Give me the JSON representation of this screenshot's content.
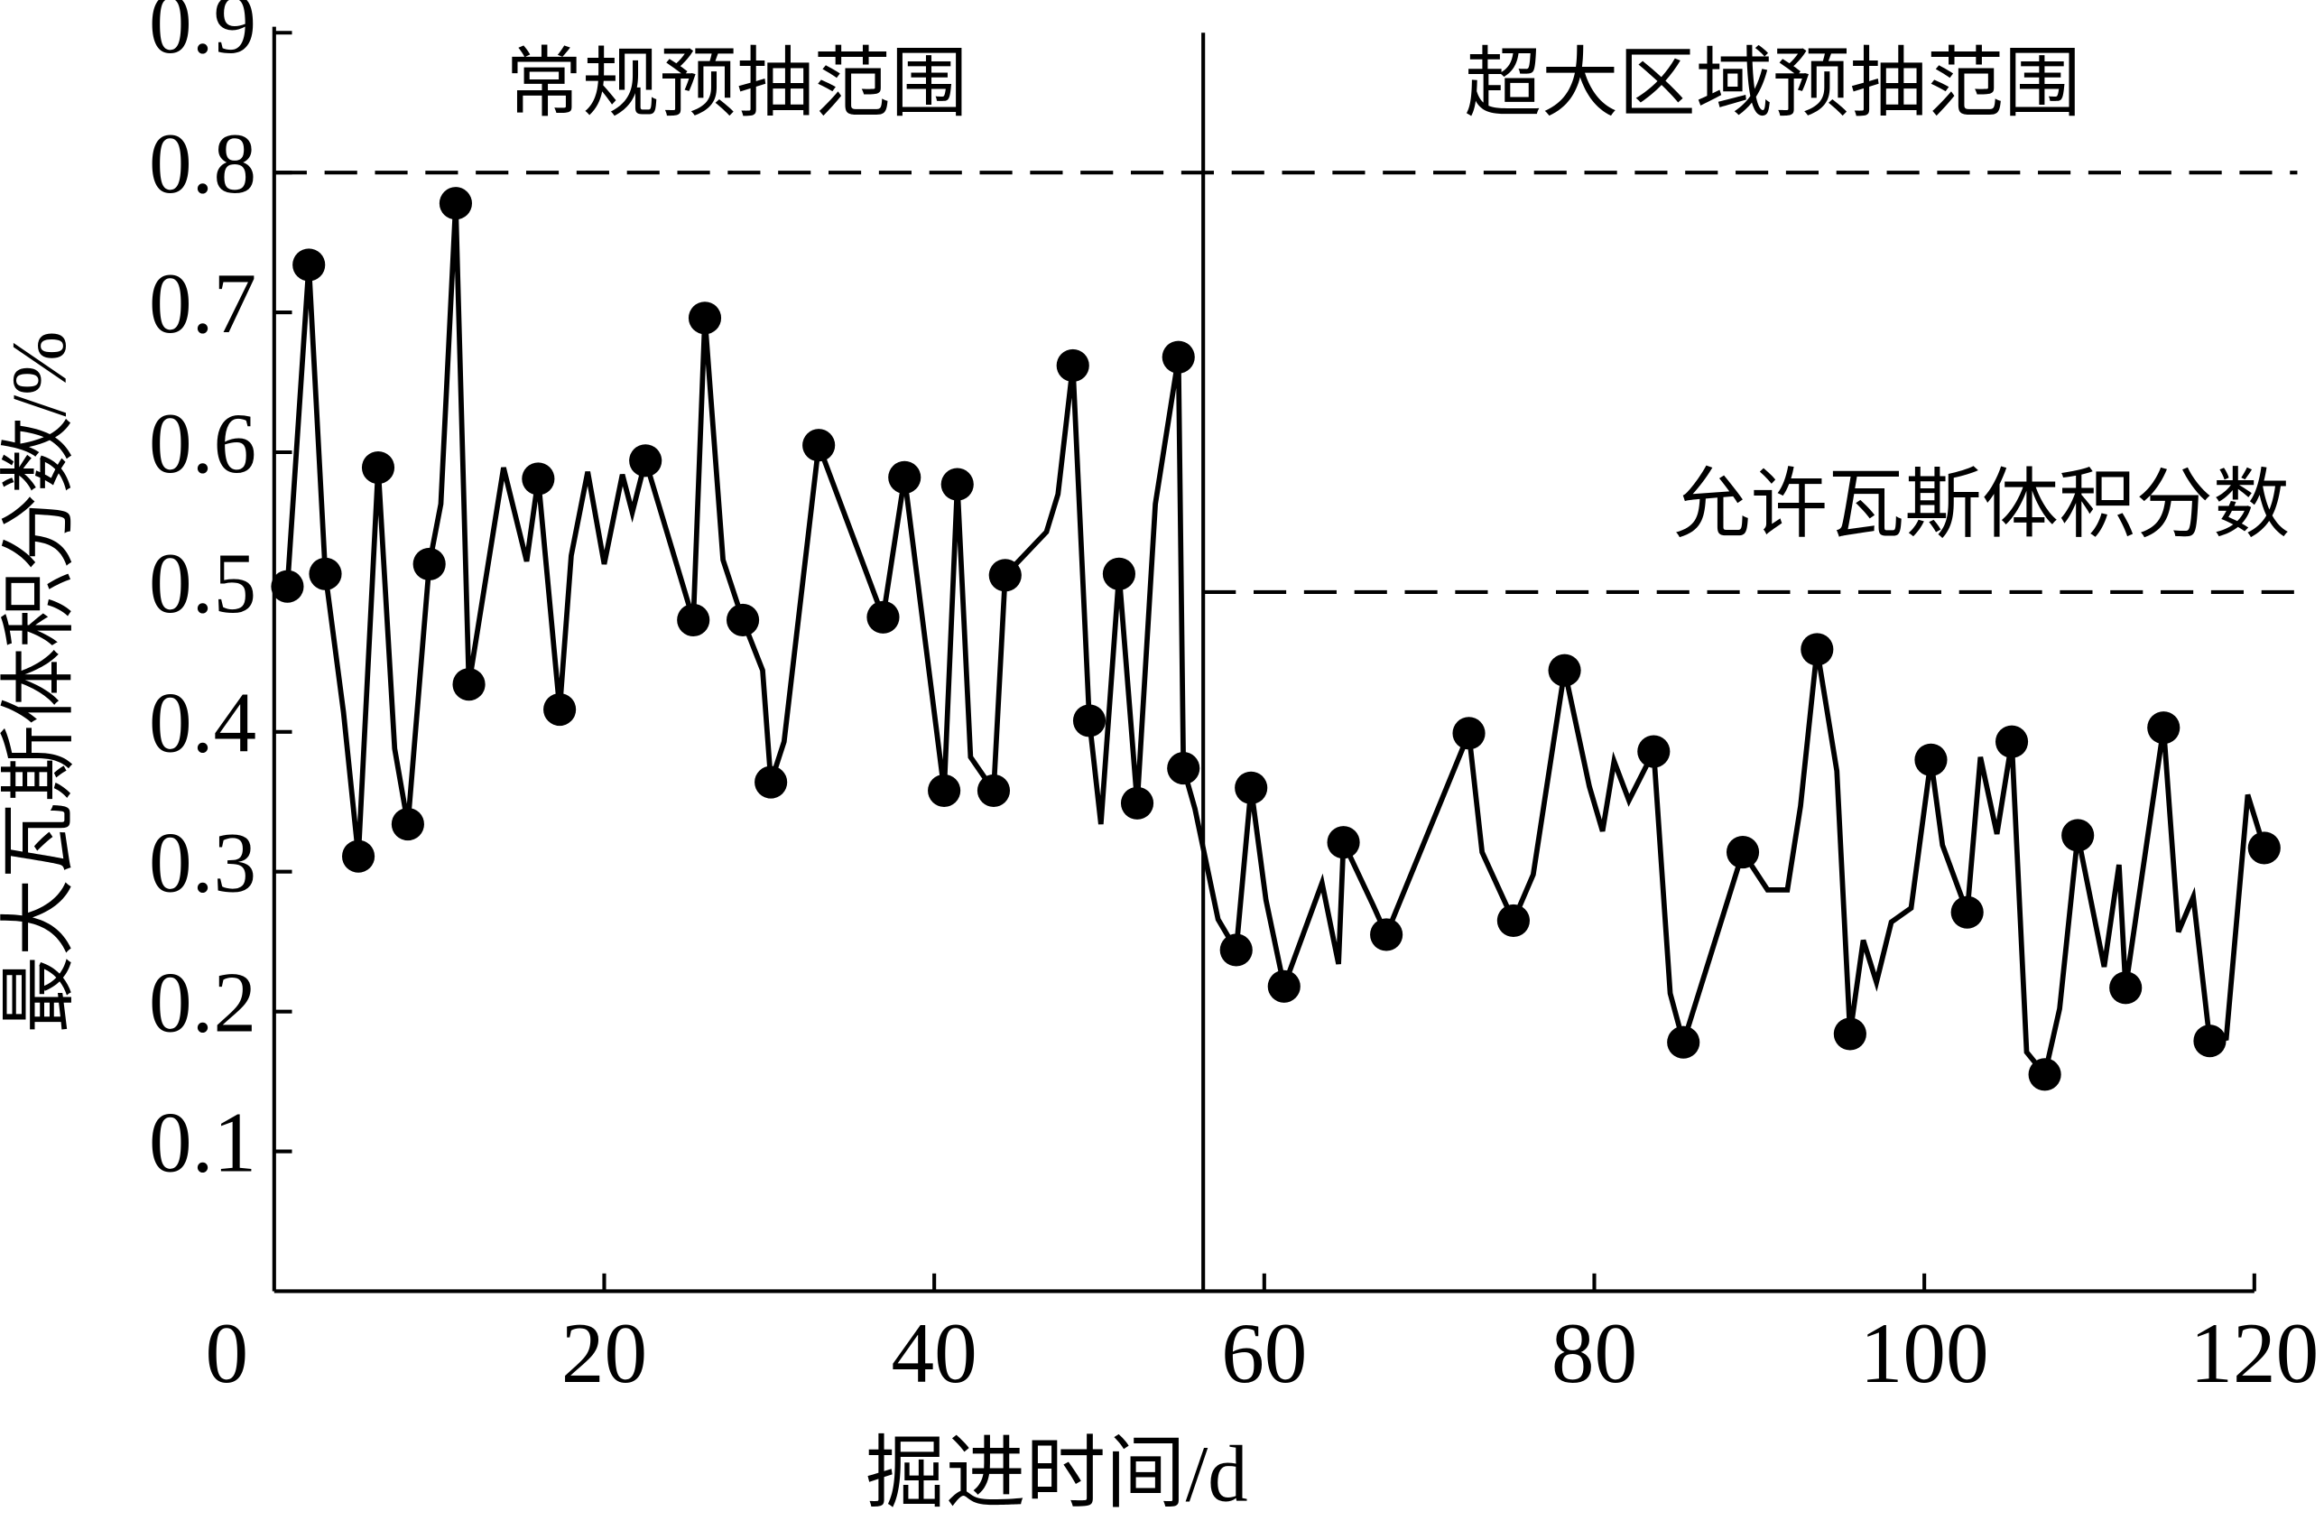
{
  "chart_data": {
    "type": "line",
    "xlabel": "掘进时间/d",
    "ylabel": "最大瓦斯体积分数/%",
    "xlim": [
      0,
      120
    ],
    "ylim": [
      0,
      0.9
    ],
    "xticks": [
      0,
      20,
      40,
      60,
      80,
      100,
      120
    ],
    "yticks": [
      0.1,
      0.2,
      0.3,
      0.4,
      0.5,
      0.6,
      0.7,
      0.8,
      0.9
    ],
    "color": "#000000",
    "series": [
      {
        "x": [
          0.8,
          2.1,
          3.1,
          4.2,
          5.1,
          6.3,
          7.3,
          8.1,
          9.4,
          10.1,
          11.0,
          11.8,
          13.9,
          15.3,
          16.0,
          17.3,
          18.0,
          19.0,
          20.0,
          21.1,
          21.7,
          22.5,
          25.4,
          26.1,
          27.2,
          28.4,
          29.6,
          30.1,
          30.9,
          33.0,
          36.9,
          38.2,
          40.6,
          41.4,
          42.2,
          43.6,
          44.3,
          46.8,
          47.5,
          48.4,
          49.4,
          50.1,
          51.2,
          52.3,
          53.4,
          54.8,
          55.1,
          55.8,
          57.2,
          58.3,
          59.2,
          60.1,
          61.2,
          63.5,
          64.5,
          64.8,
          66.6,
          67.4,
          72.4,
          73.2,
          75.1,
          76.3,
          78.2,
          79.7,
          80.5,
          81.2,
          82.1,
          83.6,
          84.6,
          85.4,
          89.0,
          90.5,
          91.7,
          92.5,
          93.5,
          94.7,
          95.5,
          96.3,
          97.1,
          98.0,
          99.2,
          100.4,
          101.1,
          102.6,
          103.4,
          104.4,
          105.3,
          106.2,
          107.3,
          108.2,
          109.3,
          110.9,
          111.8,
          112.2,
          114.5,
          115.4,
          116.3,
          117.3,
          118.3,
          119.6,
          120.6
        ],
        "values": [
          0.504,
          0.734,
          0.513,
          0.414,
          0.311,
          0.589,
          0.388,
          0.334,
          0.52,
          0.563,
          0.778,
          0.434,
          0.589,
          0.522,
          0.581,
          0.416,
          0.526,
          0.586,
          0.52,
          0.584,
          0.557,
          0.594,
          0.48,
          0.696,
          0.523,
          0.48,
          0.444,
          0.364,
          0.393,
          0.605,
          0.482,
          0.582,
          0.358,
          0.577,
          0.382,
          0.358,
          0.512,
          0.543,
          0.57,
          0.662,
          0.408,
          0.334,
          0.513,
          0.349,
          0.563,
          0.668,
          0.374,
          0.345,
          0.266,
          0.244,
          0.36,
          0.28,
          0.218,
          0.292,
          0.234,
          0.321,
          0.276,
          0.255,
          0.399,
          0.314,
          0.265,
          0.298,
          0.444,
          0.361,
          0.329,
          0.379,
          0.351,
          0.386,
          0.213,
          0.178,
          0.314,
          0.287,
          0.287,
          0.347,
          0.459,
          0.372,
          0.184,
          0.251,
          0.221,
          0.264,
          0.274,
          0.38,
          0.319,
          0.271,
          0.382,
          0.327,
          0.393,
          0.171,
          0.155,
          0.202,
          0.326,
          0.232,
          0.305,
          0.217,
          0.403,
          0.257,
          0.282,
          0.179,
          0.181,
          0.355,
          0.317
        ],
        "marker": false
      },
      {
        "x": [
          0.8,
          2.1,
          3.1,
          5.1,
          6.3,
          8.1,
          9.4,
          11.0,
          11.8,
          16.0,
          17.3,
          22.5,
          25.4,
          26.1,
          28.4,
          30.1,
          33.0,
          36.9,
          38.2,
          40.6,
          41.4,
          43.6,
          44.3,
          48.4,
          49.4,
          51.2,
          52.3,
          54.8,
          55.1,
          58.3,
          59.2,
          61.2,
          64.8,
          67.4,
          72.4,
          75.1,
          78.2,
          83.6,
          85.4,
          89.0,
          93.5,
          95.5,
          100.4,
          102.6,
          105.3,
          107.3,
          109.3,
          112.2,
          114.5,
          117.3,
          120.6
        ],
        "values": [
          0.504,
          0.734,
          0.513,
          0.311,
          0.589,
          0.334,
          0.52,
          0.778,
          0.434,
          0.581,
          0.416,
          0.594,
          0.48,
          0.696,
          0.48,
          0.364,
          0.605,
          0.482,
          0.582,
          0.358,
          0.577,
          0.358,
          0.512,
          0.662,
          0.408,
          0.513,
          0.349,
          0.668,
          0.374,
          0.244,
          0.36,
          0.218,
          0.321,
          0.255,
          0.399,
          0.265,
          0.444,
          0.386,
          0.178,
          0.314,
          0.459,
          0.184,
          0.38,
          0.271,
          0.393,
          0.155,
          0.326,
          0.217,
          0.403,
          0.179,
          0.317
        ],
        "marker": true
      }
    ],
    "reference_lines": [
      {
        "y": 0.8,
        "x0": 0
      },
      {
        "y": 0.5,
        "x0": 56.3
      }
    ],
    "divider_x": 56.3,
    "annotations": [
      "常规预抽范围",
      "超大区域预抽范围",
      "允许瓦斯体积分数"
    ]
  }
}
